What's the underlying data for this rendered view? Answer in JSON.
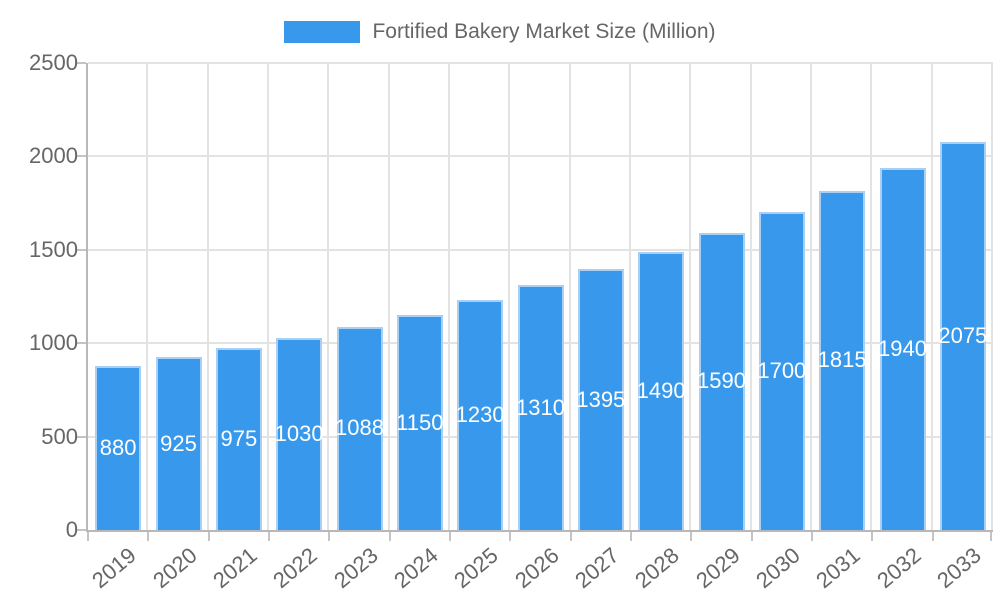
{
  "legend": {
    "label": "Fortified Bakery Market Size (Million)"
  },
  "chart_data": {
    "type": "bar",
    "title": "Fortified Bakery Market Size (Million)",
    "categories": [
      "2019",
      "2020",
      "2021",
      "2022",
      "2023",
      "2024",
      "2025",
      "2026",
      "2027",
      "2028",
      "2029",
      "2030",
      "2031",
      "2032",
      "2033"
    ],
    "values": [
      880,
      925,
      975,
      1030,
      1088,
      1150,
      1230,
      1310,
      1395,
      1490,
      1590,
      1700,
      1815,
      1940,
      2075
    ],
    "xlabel": "",
    "ylabel": "",
    "ylim": [
      0,
      2500
    ],
    "yticks": [
      0,
      500,
      1000,
      1500,
      2000,
      2500
    ],
    "grid": true,
    "legend_position": "top",
    "value_label_position": "center-inside-bar"
  },
  "colors": {
    "bar_fill": "#3899EC",
    "bar_border": "#A9CFF4",
    "gridline": "#E3E3E3",
    "axis_line": "#B8B8B8",
    "tick_mark": "#C4C4C4",
    "axis_text": "#666666",
    "value_label_text": "#FFFFFF",
    "legend_text": "#666666",
    "background": "#FFFFFF"
  }
}
